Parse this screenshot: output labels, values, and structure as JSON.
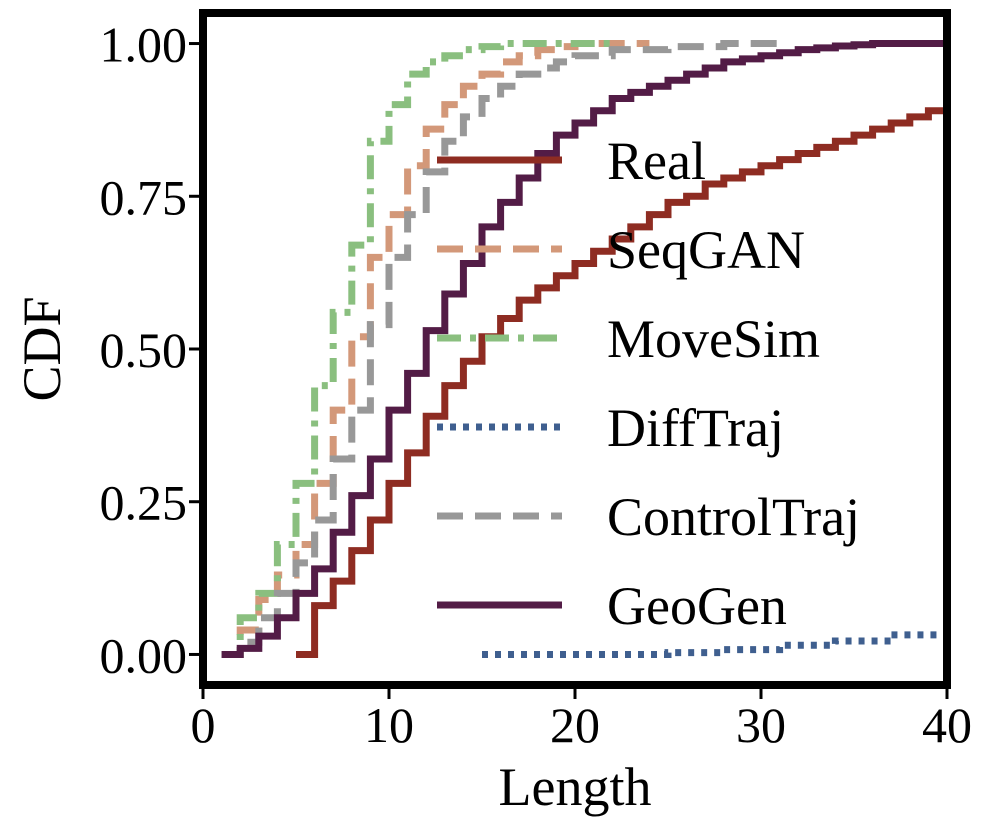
{
  "chart_data": {
    "type": "line",
    "title": "",
    "xlabel": "Length",
    "ylabel": "CDF",
    "xlim": [
      0,
      40
    ],
    "ylim": [
      -0.05,
      1.05
    ],
    "xticks": [
      "0",
      "10",
      "20",
      "30",
      "40"
    ],
    "yticks": [
      "0.00",
      "0.25",
      "0.50",
      "0.75",
      "1.00"
    ],
    "grid": false,
    "legend_position": "right",
    "series": [
      {
        "name": "Real",
        "color": "#8e2c22",
        "dash": "solid",
        "x": [
          5,
          6,
          7,
          8,
          9,
          10,
          11,
          12,
          13,
          14,
          15,
          16,
          17,
          18,
          19,
          20,
          21,
          22,
          23,
          24,
          25,
          26,
          27,
          28,
          29,
          30,
          31,
          32,
          33,
          34,
          35,
          36,
          37,
          38,
          39,
          40
        ],
        "y": [
          0.0,
          0.08,
          0.12,
          0.17,
          0.22,
          0.28,
          0.33,
          0.39,
          0.44,
          0.48,
          0.52,
          0.55,
          0.58,
          0.6,
          0.62,
          0.64,
          0.66,
          0.68,
          0.7,
          0.72,
          0.74,
          0.75,
          0.77,
          0.78,
          0.79,
          0.8,
          0.81,
          0.82,
          0.83,
          0.84,
          0.85,
          0.86,
          0.87,
          0.88,
          0.89,
          0.9
        ]
      },
      {
        "name": "SeqGAN",
        "color": "#d39879",
        "dash": "dashed",
        "x": [
          1,
          2,
          3,
          4,
          5,
          6,
          7,
          8,
          9,
          10,
          11,
          12,
          13,
          14,
          15,
          16,
          17,
          18,
          19,
          20,
          24
        ],
        "y": [
          0.0,
          0.04,
          0.09,
          0.13,
          0.18,
          0.28,
          0.4,
          0.52,
          0.65,
          0.72,
          0.8,
          0.86,
          0.9,
          0.93,
          0.95,
          0.97,
          0.98,
          0.99,
          0.995,
          1.0,
          1.0
        ]
      },
      {
        "name": "MoveSim",
        "color": "#8abf7f",
        "dash": "dashdot",
        "x": [
          1,
          2,
          3,
          4,
          5,
          6,
          7,
          8,
          9,
          10,
          11,
          12,
          13,
          14,
          15,
          16,
          17,
          18,
          19,
          20,
          22
        ],
        "y": [
          0.0,
          0.06,
          0.1,
          0.18,
          0.28,
          0.44,
          0.56,
          0.67,
          0.84,
          0.9,
          0.95,
          0.97,
          0.98,
          0.99,
          0.995,
          1.0,
          1.0,
          1.0,
          1.0,
          1.0,
          1.0
        ]
      },
      {
        "name": "DiffTraj",
        "color": "#3f5f8f",
        "dash": "dotted",
        "x": [
          15,
          20,
          25,
          28,
          31,
          34,
          37,
          40
        ],
        "y": [
          0.0,
          0.0,
          0.003,
          0.008,
          0.015,
          0.022,
          0.032,
          0.045
        ]
      },
      {
        "name": "ControlTraj",
        "color": "#989898",
        "dash": "dashed",
        "x": [
          1,
          2,
          3,
          4,
          5,
          6,
          7,
          8,
          9,
          10,
          11,
          12,
          13,
          14,
          15,
          16,
          17,
          18,
          19,
          20,
          22,
          25,
          28,
          31
        ],
        "y": [
          0.0,
          0.02,
          0.06,
          0.1,
          0.15,
          0.22,
          0.32,
          0.4,
          0.54,
          0.65,
          0.72,
          0.79,
          0.84,
          0.88,
          0.91,
          0.93,
          0.95,
          0.96,
          0.97,
          0.98,
          0.99,
          0.995,
          1.0,
          1.0
        ]
      },
      {
        "name": "GeoGen",
        "color": "#531c46",
        "dash": "solid",
        "x": [
          1,
          2,
          3,
          4,
          5,
          6,
          7,
          8,
          9,
          10,
          11,
          12,
          13,
          14,
          15,
          16,
          17,
          18,
          19,
          20,
          21,
          22,
          23,
          24,
          25,
          26,
          27,
          28,
          29,
          30,
          31,
          32,
          33,
          34,
          35,
          36,
          40
        ],
        "y": [
          0.0,
          0.01,
          0.03,
          0.06,
          0.1,
          0.14,
          0.2,
          0.26,
          0.32,
          0.4,
          0.46,
          0.53,
          0.59,
          0.64,
          0.7,
          0.74,
          0.78,
          0.82,
          0.85,
          0.87,
          0.89,
          0.91,
          0.92,
          0.93,
          0.94,
          0.95,
          0.96,
          0.97,
          0.975,
          0.98,
          0.985,
          0.99,
          0.993,
          0.996,
          0.998,
          1.0,
          1.0
        ]
      }
    ]
  }
}
